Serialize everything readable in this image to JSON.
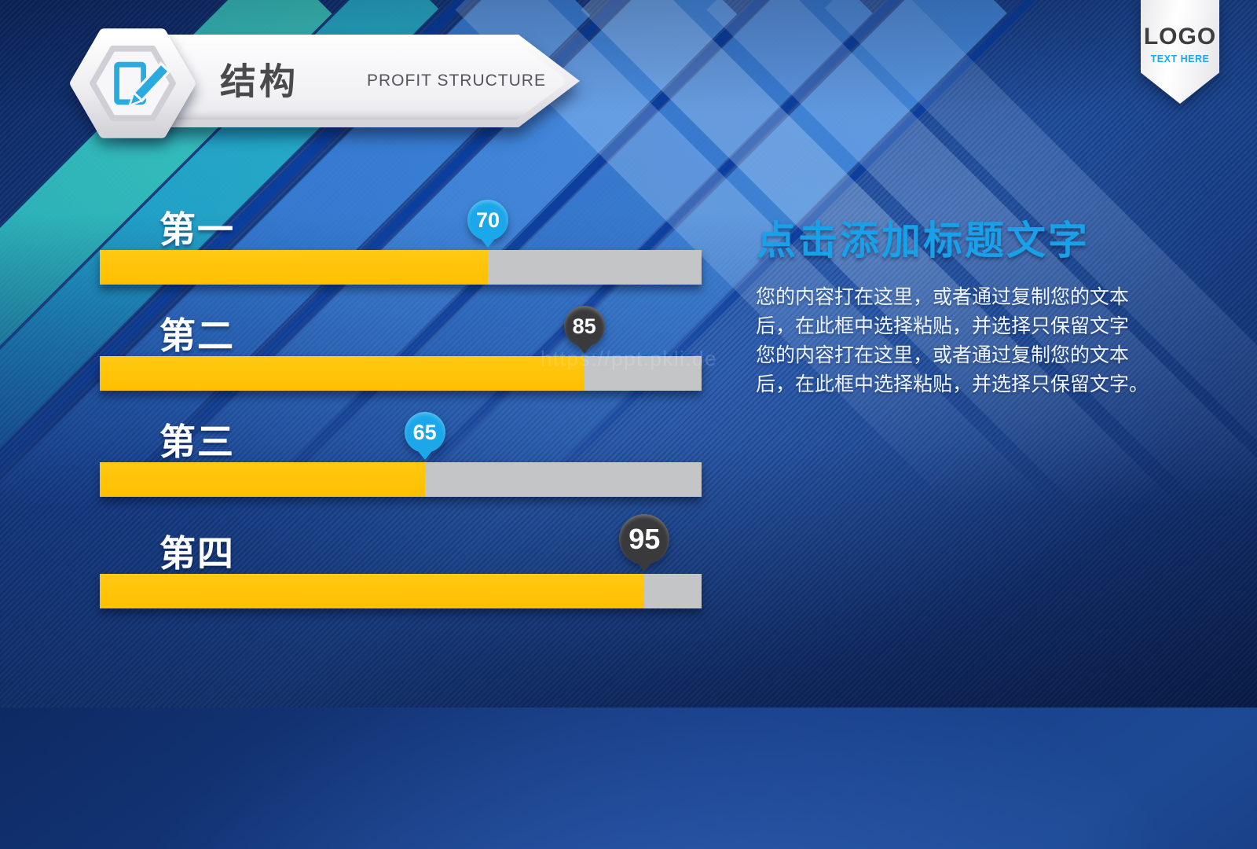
{
  "header": {
    "title_zh": "结构",
    "subtitle_en": "PROFIT STRUCTURE",
    "icon": "edit-pencil-icon"
  },
  "logo_badge": {
    "logo_text": "LOGO",
    "tagline": "TEXT HERE"
  },
  "chart_data": {
    "type": "bar",
    "orientation": "horizontal",
    "value_range": [
      0,
      100
    ],
    "categories": [
      "第一",
      "第二",
      "第三",
      "第四"
    ],
    "values": [
      70,
      85,
      65,
      95
    ],
    "rows": [
      {
        "label": "第一",
        "value": 70,
        "badge": "blue",
        "fill_pct": 64.5
      },
      {
        "label": "第二",
        "value": 85,
        "badge": "dark",
        "fill_pct": 80.5
      },
      {
        "label": "第三",
        "value": 65,
        "badge": "blue",
        "fill_pct": 54
      },
      {
        "label": "第四",
        "value": 95,
        "badge": "dark",
        "fill_pct": 90.5,
        "badge_large": true
      }
    ],
    "colors": {
      "bar_fill": "#FFC000",
      "bar_track": "#C4C5C7",
      "badge_blue": "#1BA7E9",
      "badge_dark": "#3A3A3C"
    },
    "legend": "none",
    "grid": "off"
  },
  "content": {
    "heading": "点击添加标题文字",
    "body_lines": [
      "您的内容打在这里，或者通过复制您的文本",
      "后，在此框中选择粘贴，并选择只保留文字",
      "您的内容打在这里，或者通过复制您的文本",
      "后，在此框中选择粘贴，并选择只保留文字。"
    ]
  },
  "watermark": "https://ppt.pkli.de",
  "theme": {
    "heading_color": "#18A0E8",
    "icon_blue": "#29ABE2",
    "background_navy": "#12306B"
  }
}
